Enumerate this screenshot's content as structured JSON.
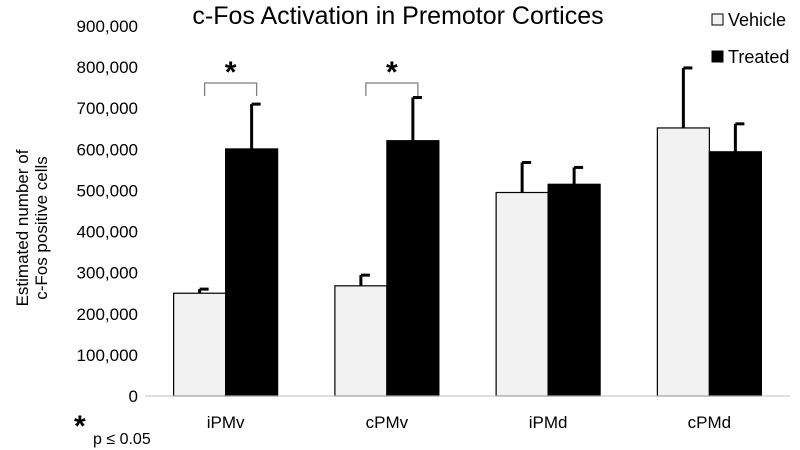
{
  "chart_data": {
    "type": "bar",
    "title": "c-Fos Activation in Premotor Cortices",
    "ylabel_lines": [
      "Estimated number of",
      "c-Fos positive cells"
    ],
    "xlabel": "",
    "categories": [
      "iPMv",
      "cPMv",
      "iPMd",
      "cPMd"
    ],
    "ylim": [
      0,
      900000
    ],
    "yticks": [
      0,
      100000,
      200000,
      300000,
      400000,
      500000,
      600000,
      700000,
      800000,
      900000
    ],
    "ytick_labels": [
      "0",
      "100,000",
      "200,000",
      "300,000",
      "400,000",
      "500,000",
      "600,000",
      "700,000",
      "800,000",
      "900,000"
    ],
    "grid": false,
    "legend_position": "top-right",
    "series": [
      {
        "name": "Vehicle",
        "color": "#f2f2f2",
        "values": [
          250000,
          268000,
          495000,
          652000
        ],
        "errors": [
          10000,
          26000,
          73000,
          146000
        ]
      },
      {
        "name": "Treated",
        "color": "#000000",
        "values": [
          601000,
          621000,
          515000,
          594000
        ],
        "errors": [
          109000,
          105000,
          41000,
          68000
        ]
      }
    ],
    "significance": [
      {
        "category": "iPMv",
        "marker": "*"
      },
      {
        "category": "cPMv",
        "marker": "*"
      }
    ],
    "footnote": {
      "marker": "*",
      "text": "p ≤ 0.05"
    }
  }
}
